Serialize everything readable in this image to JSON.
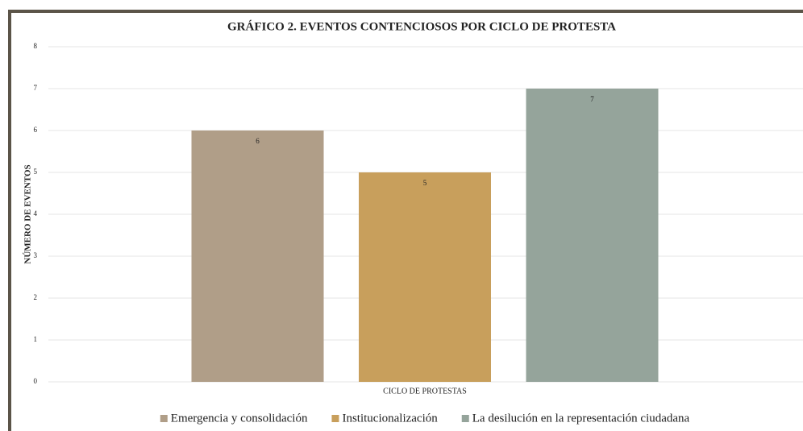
{
  "chart_data": {
    "type": "bar",
    "title": "GRÁFICO 2. EVENTOS CONTENCIOSOS POR CICLO DE PROTESTA",
    "y_label": "NÚMERO DE EVENTOS",
    "categories": [
      "CICLO DE PROTESTAS"
    ],
    "series": [
      {
        "name": "Emergencia y consolidación",
        "color": "#b09e88",
        "values": [
          6
        ]
      },
      {
        "name": "Institucionalización",
        "color": "#c89f5c",
        "values": [
          5
        ]
      },
      {
        "name": "La desilución en la representación ciudadana",
        "color": "#95a49b",
        "values": [
          7
        ]
      }
    ],
    "ylim": [
      0,
      8
    ],
    "yticks": [
      0,
      1,
      2,
      3,
      4,
      5,
      6,
      7,
      8
    ],
    "grid": true,
    "legend": "bottom"
  }
}
